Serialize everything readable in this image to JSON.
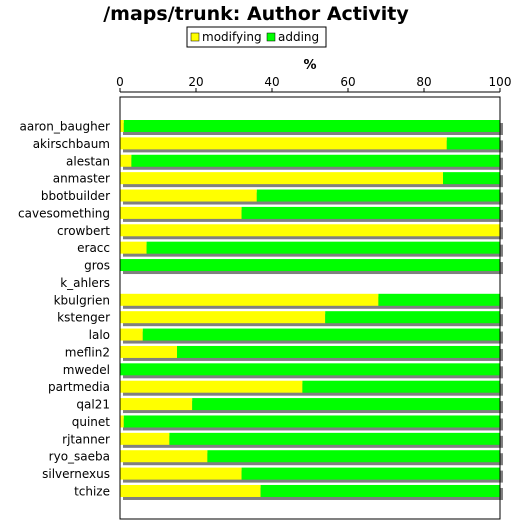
{
  "chart_data": {
    "type": "bar",
    "orientation": "horizontal",
    "stacked": true,
    "title": "/maps/trunk: Author Activity",
    "xlabel": "%",
    "ylabel": "",
    "xlim": [
      0,
      100
    ],
    "x_ticks": [
      "0",
      "20",
      "40",
      "60",
      "80",
      "100"
    ],
    "x_axis_position": "top",
    "legend_position": "top-center",
    "grid": false,
    "categories": [
      "aaron_baugher",
      "akirschbaum",
      "alestan",
      "anmaster",
      "bbotbuilder",
      "cavesomething",
      "crowbert",
      "eracc",
      "gros",
      "k_ahlers",
      "kbulgrien",
      "kstenger",
      "lalo",
      "meflin2",
      "mwedel",
      "partmedia",
      "qal21",
      "quinet",
      "rjtanner",
      "ryo_saeba",
      "silvernexus",
      "tchize"
    ],
    "series": [
      {
        "name": "modifying",
        "color": "#ffff00",
        "values": [
          1,
          86,
          3,
          85,
          36,
          32,
          100,
          7,
          0,
          0,
          68,
          54,
          6,
          15,
          0,
          48,
          19,
          1,
          13,
          23,
          32,
          37
        ]
      },
      {
        "name": "adding",
        "color": "#00ff00",
        "values": [
          99,
          14,
          97,
          15,
          64,
          68,
          0,
          93,
          100,
          0,
          32,
          46,
          94,
          85,
          100,
          52,
          81,
          99,
          87,
          77,
          68,
          63
        ]
      }
    ]
  }
}
